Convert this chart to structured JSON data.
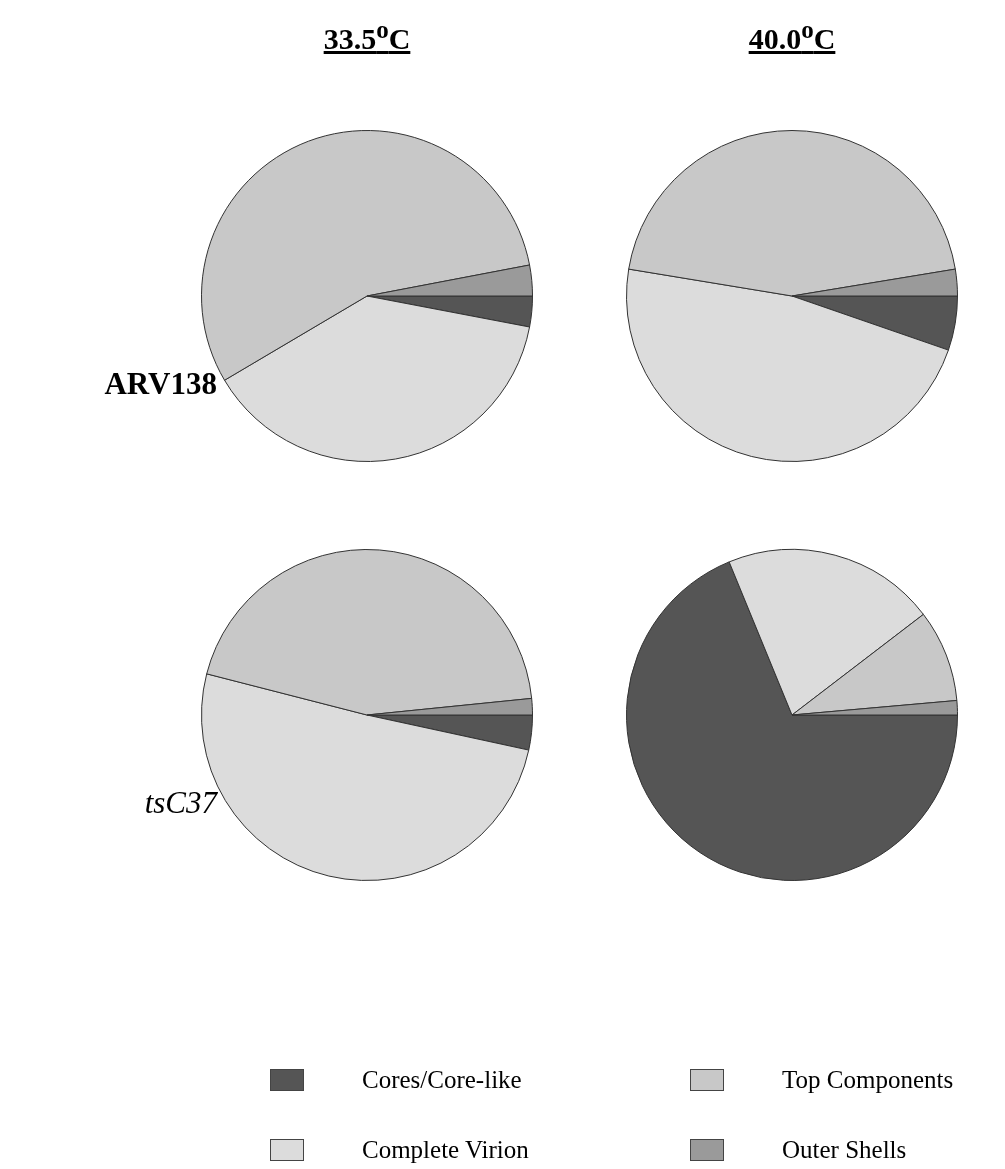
{
  "chart_data": [
    {
      "type": "pie",
      "title": "33.5$^{o}$C",
      "ylabel": "ARV138",
      "legend": "bottom",
      "categories": [
        "Cores/Core-like",
        "Complete Virion",
        "Top Components",
        "Outer Shells"
      ],
      "values": [
        3,
        38.5,
        55.5,
        3
      ],
      "colors": [
        "#555555",
        "#dcdcdc",
        "#c8c8c8",
        "#9a9a9a"
      ]
    },
    {
      "type": "pie",
      "title": "40.0$^{o}$C",
      "categories": [
        null,
        null,
        null,
        null
      ],
      "values": [
        5.3,
        47.3,
        44.8,
        2.6
      ],
      "colors": [
        "#555555",
        "#dcdcdc",
        "#c8c8c8",
        "#9a9a9a"
      ]
    },
    {
      "type": "pie",
      "ylabel": "tsC37",
      "categories": [
        null,
        null,
        null,
        null
      ],
      "values": [
        3.4,
        50.6,
        44.4,
        1.6
      ],
      "colors": [
        "#555555",
        "#dcdcdc",
        "#c8c8c8",
        "#9a9a9a"
      ]
    },
    {
      "type": "pie",
      "categories": [
        null,
        null,
        null,
        null
      ],
      "values": [
        68.8,
        20.8,
        9,
        1.4
      ],
      "colors": [
        "#555555",
        "#dcdcdc",
        "#c8c8c8",
        "#9a9a9a"
      ]
    }
  ]
}
